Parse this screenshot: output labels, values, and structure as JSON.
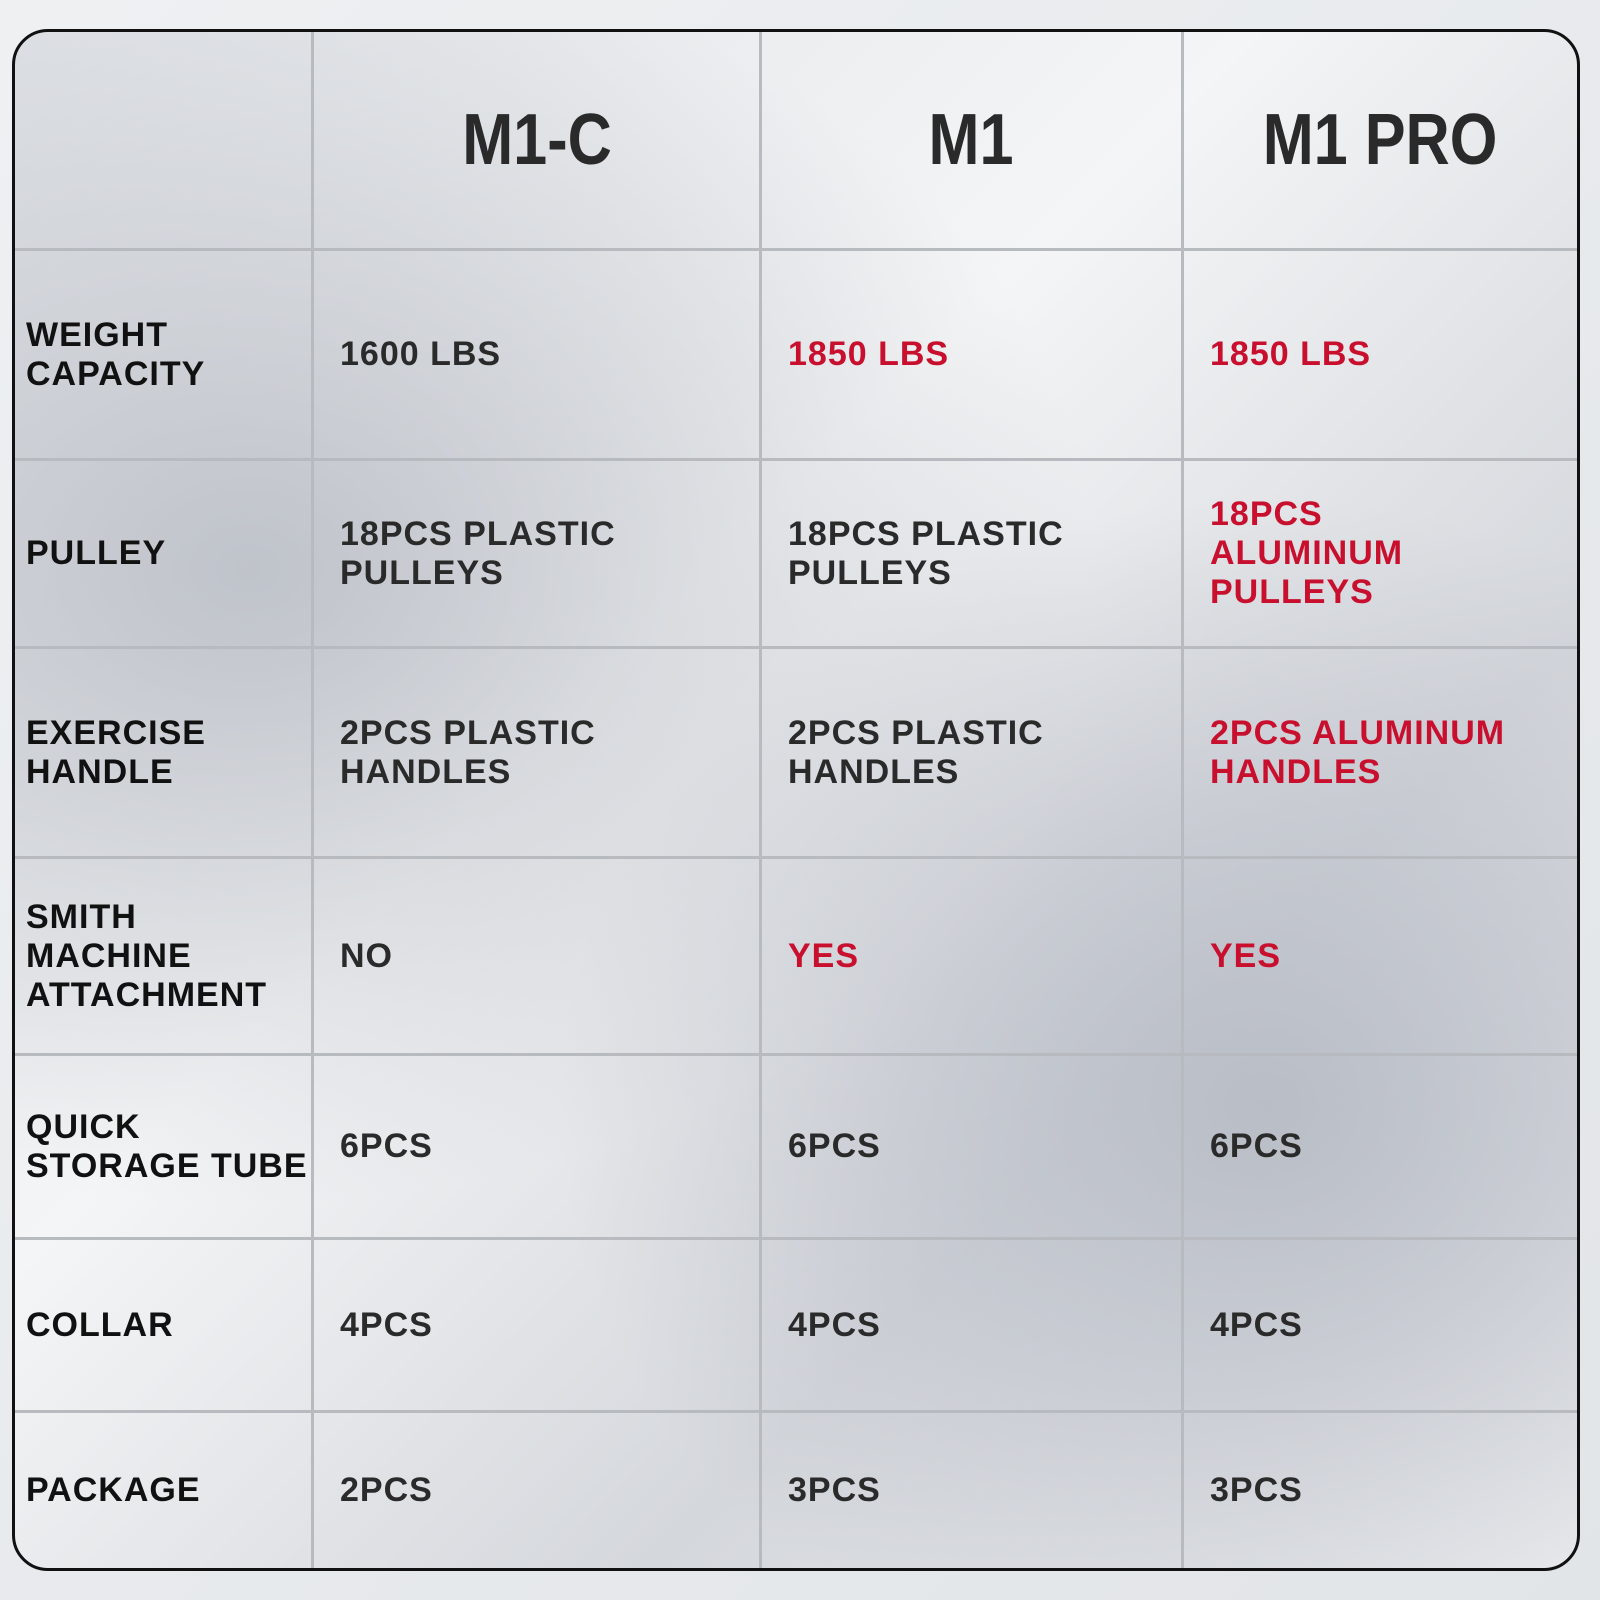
{
  "table": {
    "header": [
      "M1-C",
      "M1",
      "M1 PRO"
    ],
    "rows": [
      {
        "label": "WEIGHT\nCAPACITY",
        "cells": [
          {
            "text": "1600 LBS"
          },
          {
            "text": "1850 LBS",
            "color": "#c8102e"
          },
          {
            "text": "1850 LBS",
            "color": "#c8102e"
          }
        ]
      },
      {
        "label": "PULLEY",
        "cells": [
          {
            "text": "18PCS PLASTIC\nPULLEYS"
          },
          {
            "text": "18PCS PLASTIC\nPULLEYS"
          },
          {
            "text": "18PCS\nALUMINUM PULLEYS",
            "color": "#c8102e"
          }
        ]
      },
      {
        "label": "EXERCISE\nHANDLE",
        "cells": [
          {
            "text": "2PCS PLASTIC\nHANDLES"
          },
          {
            "text": "2PCS PLASTIC\nHANDLES"
          },
          {
            "text": "2PCS ALUMINUM\nHANDLES",
            "color": "#c8102e"
          }
        ]
      },
      {
        "label": "SMITH MACHINE\nATTACHMENT",
        "cells": [
          {
            "text": "NO"
          },
          {
            "text": "YES",
            "color": "#c8102e"
          },
          {
            "text": "YES",
            "color": "#c8102e"
          }
        ]
      },
      {
        "label": "QUICK\nSTORAGE TUBE",
        "cells": [
          {
            "text": "6PCS"
          },
          {
            "text": "6PCS"
          },
          {
            "text": "6PCS"
          }
        ]
      },
      {
        "label": "COLLAR",
        "cells": [
          {
            "text": "4PCS"
          },
          {
            "text": "4PCS"
          },
          {
            "text": "4PCS"
          }
        ]
      },
      {
        "label": "PACKAGE",
        "cells": [
          {
            "text": "2PCS"
          },
          {
            "text": "3PCS"
          },
          {
            "text": "3PCS"
          }
        ]
      }
    ]
  }
}
